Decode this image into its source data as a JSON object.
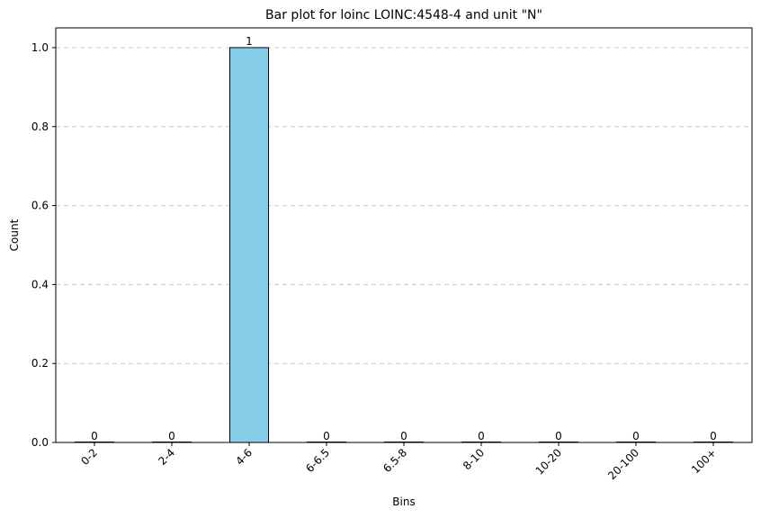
{
  "chart_data": {
    "type": "bar",
    "title": "Bar plot for loinc LOINC:4548-4 and unit \"N\"",
    "xlabel": "Bins",
    "ylabel": "Count",
    "categories": [
      "0-2",
      "2-4",
      "4-6",
      "6-6.5",
      "6.5-8",
      "8-10",
      "10-20",
      "20-100",
      "100+"
    ],
    "values": [
      0,
      0,
      1,
      0,
      0,
      0,
      0,
      0,
      0
    ],
    "value_labels": [
      "0",
      "0",
      "1",
      "0",
      "0",
      "0",
      "0",
      "0",
      "0"
    ],
    "ylim": [
      0,
      1.05
    ],
    "yticks": [
      "0.0",
      "0.2",
      "0.4",
      "0.6",
      "0.8",
      "1.0"
    ],
    "ytick_values": [
      0,
      0.2,
      0.4,
      0.6,
      0.8,
      1.0
    ],
    "grid": "y-dashed",
    "bar_color": "#87ceeb",
    "bar_edge_color": "#000000",
    "grid_color": "#c8c8c8"
  }
}
